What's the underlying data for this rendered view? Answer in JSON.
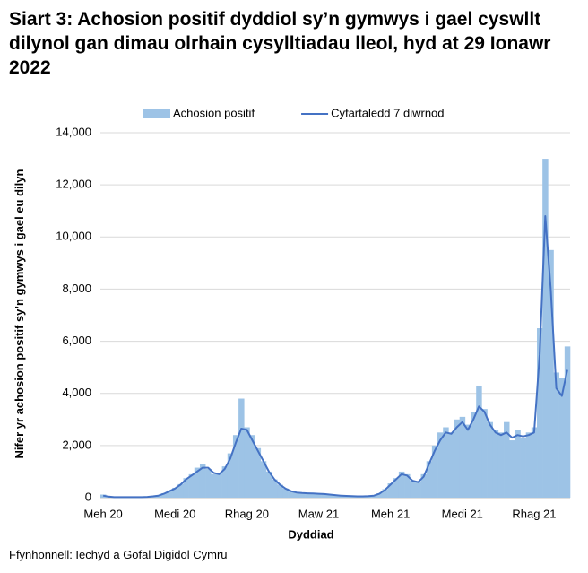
{
  "chart_data": {
    "type": "bar-line",
    "title": "Siart 3: Achosion positif dyddiol sy’n gymwys i gael cyswllt dilynol gan dimau olrhain cysylltiadau lleol, hyd at 29 Ionawr 2022",
    "x_label": "Dyddiad",
    "y_label": "Nifer yr achosion positif sy’n gymwys i gael eu dilyn",
    "source": "Ffynhonnell: Iechyd a Gofal Digidol Cymru",
    "categories": [
      "Meh 20",
      null,
      null,
      null,
      null,
      null,
      null,
      null,
      null,
      null,
      null,
      null,
      null,
      "Medi 20",
      null,
      null,
      null,
      null,
      null,
      null,
      null,
      null,
      null,
      null,
      null,
      null,
      "Rhag 20",
      null,
      null,
      null,
      null,
      null,
      null,
      null,
      null,
      null,
      null,
      null,
      null,
      "Maw 21",
      null,
      null,
      null,
      null,
      null,
      null,
      null,
      null,
      null,
      null,
      null,
      null,
      "Meh 21",
      null,
      null,
      null,
      null,
      null,
      null,
      null,
      null,
      null,
      null,
      null,
      null,
      "Medi 21",
      null,
      null,
      null,
      null,
      null,
      null,
      null,
      null,
      null,
      null,
      null,
      null,
      "Rhag 21",
      null,
      null,
      null,
      null,
      null,
      null
    ],
    "series": [
      {
        "name": "Achosion positif",
        "kind": "bar",
        "color": "#9dc3e6",
        "values": [
          120,
          50,
          20,
          20,
          20,
          20,
          20,
          30,
          30,
          60,
          100,
          170,
          280,
          380,
          520,
          750,
          900,
          1150,
          1300,
          1100,
          900,
          950,
          1200,
          1700,
          2400,
          3800,
          2700,
          2400,
          1900,
          1400,
          1000,
          700,
          500,
          350,
          250,
          200,
          180,
          170,
          160,
          150,
          140,
          120,
          100,
          80,
          70,
          60,
          50,
          50,
          60,
          90,
          170,
          330,
          550,
          750,
          1000,
          900,
          650,
          620,
          900,
          1400,
          2000,
          2500,
          2700,
          2500,
          3000,
          3100,
          2800,
          3300,
          4300,
          3400,
          2900,
          2600,
          2500,
          2900,
          2200,
          2600,
          2300,
          2500,
          2700,
          6500,
          13000,
          9500,
          4800,
          4600,
          5800
        ]
      },
      {
        "name": "Cyfartaledd 7 diwrnod",
        "kind": "line",
        "color": "#4472c4",
        "values": [
          80,
          40,
          20,
          20,
          20,
          20,
          20,
          20,
          30,
          50,
          80,
          150,
          250,
          350,
          500,
          700,
          850,
          1000,
          1150,
          1150,
          950,
          900,
          1100,
          1500,
          2100,
          2650,
          2600,
          2200,
          1800,
          1400,
          1000,
          700,
          500,
          350,
          250,
          200,
          180,
          170,
          160,
          150,
          140,
          120,
          100,
          80,
          70,
          60,
          50,
          50,
          60,
          80,
          150,
          300,
          500,
          700,
          900,
          850,
          650,
          600,
          800,
          1300,
          1800,
          2200,
          2500,
          2450,
          2700,
          2900,
          2600,
          3000,
          3500,
          3300,
          2800,
          2500,
          2400,
          2500,
          2300,
          2400,
          2350,
          2400,
          2500,
          5500,
          10800,
          8000,
          4200,
          3900,
          4900
        ]
      }
    ],
    "ylim": [
      0,
      14000
    ],
    "yticks": [
      0,
      {
        "value": 2000,
        "label": "2,000"
      },
      {
        "value": 4000,
        "label": "4,000"
      },
      {
        "value": 6000,
        "label": "6,000"
      },
      {
        "value": 8000,
        "label": "8,000"
      },
      {
        "value": 10000,
        "label": "10,000"
      },
      {
        "value": 12000,
        "label": "12,000"
      },
      {
        "value": 14000,
        "label": "14,000"
      }
    ],
    "grid": true,
    "legend": "top"
  }
}
